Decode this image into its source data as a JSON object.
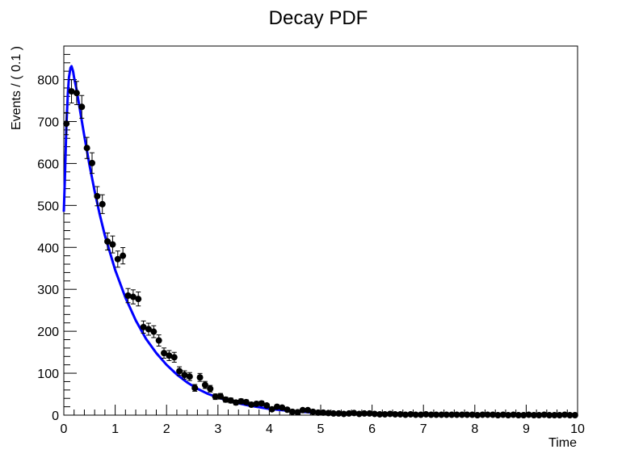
{
  "chart_data": {
    "type": "scatter",
    "title": "Decay PDF",
    "xlabel": "Time",
    "ylabel": "Events / ( 0.1 )",
    "xlim": [
      0,
      10
    ],
    "ylim": [
      0,
      880
    ],
    "x_ticks": [
      0,
      1,
      2,
      3,
      4,
      5,
      6,
      7,
      8,
      9,
      10
    ],
    "x_tick_labels": [
      "0",
      "1",
      "2",
      "3",
      "4",
      "5",
      "6",
      "7",
      "8",
      "9",
      "10"
    ],
    "y_ticks": [
      0,
      100,
      200,
      300,
      400,
      500,
      600,
      700,
      800
    ],
    "y_tick_labels": [
      "0",
      "100",
      "200",
      "300",
      "400",
      "500",
      "600",
      "700",
      "800"
    ],
    "grid": false,
    "legend": "none",
    "colors": {
      "data": "#000000",
      "fit": "#0000ff",
      "frame": "#000000"
    },
    "series": [
      {
        "kind": "points-with-errors",
        "x": [
          0.05,
          0.15,
          0.25,
          0.35,
          0.45,
          0.55,
          0.65,
          0.75,
          0.85,
          0.95,
          1.05,
          1.15,
          1.25,
          1.35,
          1.45,
          1.55,
          1.65,
          1.75,
          1.85,
          1.95,
          2.05,
          2.15,
          2.25,
          2.35,
          2.45,
          2.55,
          2.65,
          2.75,
          2.85,
          2.95,
          3.05,
          3.15,
          3.25,
          3.35,
          3.45,
          3.55,
          3.65,
          3.75,
          3.85,
          3.95,
          4.05,
          4.15,
          4.25,
          4.35,
          4.45,
          4.55,
          4.65,
          4.75,
          4.85,
          4.95,
          5.05,
          5.15,
          5.25,
          5.35,
          5.45,
          5.55,
          5.65,
          5.75,
          5.85,
          5.95,
          6.05,
          6.15,
          6.25,
          6.35,
          6.45,
          6.55,
          6.65,
          6.75,
          6.85,
          6.95,
          7.05,
          7.15,
          7.25,
          7.35,
          7.45,
          7.55,
          7.65,
          7.75,
          7.85,
          7.95,
          8.05,
          8.15,
          8.25,
          8.35,
          8.45,
          8.55,
          8.65,
          8.75,
          8.85,
          8.95,
          9.05,
          9.15,
          9.25,
          9.35,
          9.45,
          9.55,
          9.65,
          9.75,
          9.85,
          9.95
        ],
        "y": [
          695,
          772,
          768,
          735,
          637,
          601,
          522,
          503,
          414,
          407,
          372,
          380,
          285,
          282,
          277,
          210,
          205,
          199,
          178,
          148,
          142,
          138,
          105,
          96,
          92,
          65,
          90,
          72,
          63,
          44,
          45,
          37,
          35,
          30,
          33,
          31,
          25,
          27,
          28,
          23,
          14,
          20,
          18,
          13,
          8,
          7,
          12,
          12,
          8,
          6,
          6,
          5,
          4,
          4,
          3,
          4,
          5,
          3,
          4,
          4,
          3,
          2,
          2,
          3,
          2,
          2,
          1,
          2,
          1,
          1,
          2,
          1,
          1,
          1,
          1,
          1,
          1,
          1,
          1,
          1,
          0,
          1,
          1,
          1,
          0,
          1,
          0,
          1,
          0,
          0,
          1,
          0,
          0,
          1,
          0,
          0,
          0,
          1,
          0,
          0
        ]
      },
      {
        "kind": "fit-curve",
        "x": [
          0,
          0.02,
          0.05,
          0.08,
          0.1,
          0.13,
          0.15,
          0.18,
          0.2,
          0.25,
          0.3,
          0.4,
          0.5,
          0.6,
          0.7,
          0.8,
          1.0,
          1.2,
          1.4,
          1.6,
          1.8,
          2.0,
          2.2,
          2.4,
          2.6,
          2.8,
          3.0,
          3.3,
          3.6,
          4.0,
          4.5,
          5.0,
          5.5,
          6.0,
          7.0,
          8.0,
          9.0,
          10.0
        ],
        "y": [
          485,
          560,
          690,
          770,
          805,
          828,
          832,
          820,
          805,
          775,
          738,
          665,
          596,
          534,
          478,
          428,
          346,
          280,
          226,
          182,
          148,
          120,
          97,
          78,
          63,
          51,
          42,
          31,
          23,
          15,
          9,
          5,
          3,
          2,
          1,
          0.5,
          0.2,
          0.1
        ]
      }
    ]
  }
}
